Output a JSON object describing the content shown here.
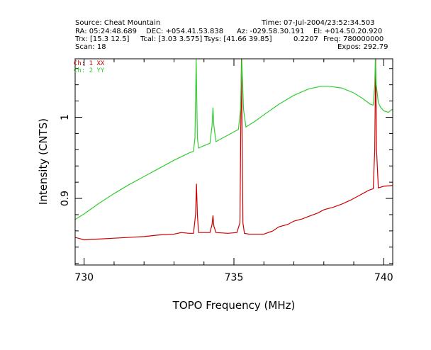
{
  "header": {
    "source": "Source: Cheat Mountain",
    "time": "Time: 07-Jul-2004/23:52:34.503",
    "ra": "RA: 05:24:48.689",
    "dec": "DEC: +054.41.53.838",
    "az": "Az: -029.58.30.191",
    "el": "El: +014.50.20.920",
    "trx": "Trx: [15.3 12.5]",
    "tcal": "Tcal: [3.03 3.575]",
    "tsys": "Tsys: [41.66 39.85]",
    "tsys_overlap": "0.2207",
    "freq": "Freq: 780000000",
    "scan": "Scan: 18",
    "expos": "Expos: 292.79"
  },
  "chart_data": {
    "type": "line",
    "xlabel": "TOPO Frequency (MHz)",
    "ylabel": "Intensity (CNTS)",
    "xlim": [
      729.7,
      740.3
    ],
    "ylim": [
      0.818,
      1.072
    ],
    "xticks": [
      730,
      735,
      740
    ],
    "xtick_labels": [
      "730",
      "735",
      "740"
    ],
    "yticks": [
      0.9,
      1.0
    ],
    "ytick_labels": [
      "0.9",
      "1"
    ],
    "series": [
      {
        "name": "Ch: 1  XX",
        "color": "#cc0000",
        "points": [
          [
            729.7,
            0.852
          ],
          [
            730.0,
            0.849
          ],
          [
            730.5,
            0.85
          ],
          [
            731.0,
            0.851
          ],
          [
            731.5,
            0.852
          ],
          [
            732.0,
            0.853
          ],
          [
            732.5,
            0.855
          ],
          [
            733.0,
            0.856
          ],
          [
            733.25,
            0.858
          ],
          [
            733.5,
            0.857
          ],
          [
            733.65,
            0.857
          ],
          [
            733.72,
            0.88
          ],
          [
            733.75,
            0.918
          ],
          [
            733.78,
            0.88
          ],
          [
            733.82,
            0.858
          ],
          [
            734.0,
            0.858
          ],
          [
            734.2,
            0.858
          ],
          [
            734.27,
            0.868
          ],
          [
            734.3,
            0.879
          ],
          [
            734.33,
            0.866
          ],
          [
            734.4,
            0.858
          ],
          [
            734.8,
            0.857
          ],
          [
            735.1,
            0.858
          ],
          [
            735.2,
            0.87
          ],
          [
            735.25,
            1.072
          ],
          [
            735.3,
            0.87
          ],
          [
            735.35,
            0.857
          ],
          [
            735.5,
            0.856
          ],
          [
            736.0,
            0.856
          ],
          [
            736.3,
            0.86
          ],
          [
            736.5,
            0.865
          ],
          [
            736.8,
            0.868
          ],
          [
            737.0,
            0.872
          ],
          [
            737.3,
            0.875
          ],
          [
            737.5,
            0.878
          ],
          [
            737.8,
            0.882
          ],
          [
            738.0,
            0.886
          ],
          [
            738.3,
            0.889
          ],
          [
            738.6,
            0.893
          ],
          [
            738.9,
            0.898
          ],
          [
            739.2,
            0.904
          ],
          [
            739.5,
            0.91
          ],
          [
            739.65,
            0.912
          ],
          [
            739.7,
            0.96
          ],
          [
            739.73,
            1.072
          ],
          [
            739.76,
            0.96
          ],
          [
            739.82,
            0.913
          ],
          [
            740.0,
            0.915
          ],
          [
            740.3,
            0.916
          ]
        ]
      },
      {
        "name": "Ch: 2  YY",
        "color": "#33cc33",
        "points": [
          [
            729.7,
            0.874
          ],
          [
            730.0,
            0.881
          ],
          [
            730.5,
            0.894
          ],
          [
            731.0,
            0.906
          ],
          [
            731.5,
            0.917
          ],
          [
            732.0,
            0.927
          ],
          [
            732.5,
            0.937
          ],
          [
            733.0,
            0.947
          ],
          [
            733.5,
            0.956
          ],
          [
            733.65,
            0.958
          ],
          [
            733.7,
            0.975
          ],
          [
            733.74,
            1.072
          ],
          [
            733.78,
            0.975
          ],
          [
            733.82,
            0.962
          ],
          [
            734.0,
            0.965
          ],
          [
            734.2,
            0.968
          ],
          [
            734.27,
            0.99
          ],
          [
            734.3,
            1.012
          ],
          [
            734.33,
            0.99
          ],
          [
            734.4,
            0.97
          ],
          [
            734.7,
            0.976
          ],
          [
            735.0,
            0.982
          ],
          [
            735.15,
            0.985
          ],
          [
            735.22,
            1.01
          ],
          [
            735.26,
            1.072
          ],
          [
            735.32,
            1.01
          ],
          [
            735.4,
            0.988
          ],
          [
            735.7,
            0.995
          ],
          [
            736.0,
            1.003
          ],
          [
            736.5,
            1.016
          ],
          [
            737.0,
            1.027
          ],
          [
            737.5,
            1.035
          ],
          [
            737.9,
            1.038
          ],
          [
            738.2,
            1.038
          ],
          [
            738.6,
            1.036
          ],
          [
            739.0,
            1.03
          ],
          [
            739.3,
            1.023
          ],
          [
            739.55,
            1.016
          ],
          [
            739.65,
            1.015
          ],
          [
            739.7,
            1.04
          ],
          [
            739.72,
            1.072
          ],
          [
            739.75,
            1.04
          ],
          [
            739.82,
            1.018
          ],
          [
            739.9,
            1.012
          ],
          [
            740.0,
            1.008
          ],
          [
            740.15,
            1.006
          ],
          [
            740.3,
            1.01
          ]
        ]
      }
    ],
    "grid": false,
    "legend": "top-left"
  }
}
